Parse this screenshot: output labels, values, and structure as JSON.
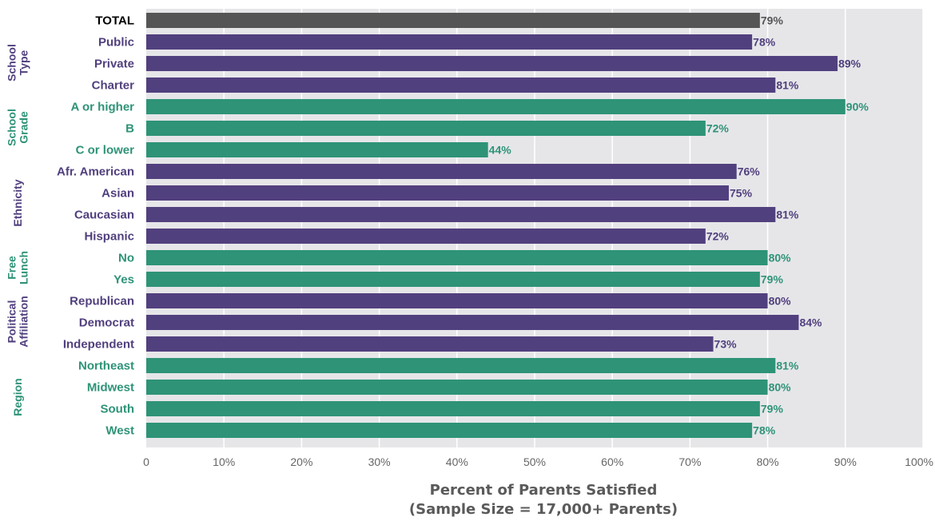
{
  "chart_data": {
    "type": "bar",
    "orientation": "horizontal",
    "xlabel": "Percent of Parents Satisfied",
    "xlabel_sub": "(Sample Size = 17,000+ Parents)",
    "xlim": [
      0,
      100
    ],
    "x_ticks": [
      "0",
      "10%",
      "20%",
      "30%",
      "40%",
      "50%",
      "60%",
      "70%",
      "80%",
      "90%",
      "100%"
    ],
    "grid": true,
    "colors": {
      "total": "#555555",
      "purple": "#51407e",
      "green": "#2e9377",
      "total_text": "#000000",
      "plot_bg": "#e6e6e9"
    },
    "categories": [
      {
        "label": "TOTAL",
        "value": 79,
        "display": "79%",
        "color": "total"
      },
      {
        "label": "Public",
        "value": 78,
        "display": "78%",
        "color": "purple"
      },
      {
        "label": "Private",
        "value": 89,
        "display": "89%",
        "color": "purple"
      },
      {
        "label": "Charter",
        "value": 81,
        "display": "81%",
        "color": "purple"
      },
      {
        "label": "A or higher",
        "value": 90,
        "display": "90%",
        "color": "green"
      },
      {
        "label": "B",
        "value": 72,
        "display": "72%",
        "color": "green"
      },
      {
        "label": "C or lower",
        "value": 44,
        "display": "44%",
        "color": "green"
      },
      {
        "label": "Afr. American",
        "value": 76,
        "display": "76%",
        "color": "purple"
      },
      {
        "label": "Asian",
        "value": 75,
        "display": "75%",
        "color": "purple"
      },
      {
        "label": "Caucasian",
        "value": 81,
        "display": "81%",
        "color": "purple"
      },
      {
        "label": "Hispanic",
        "value": 72,
        "display": "72%",
        "color": "purple"
      },
      {
        "label": "No",
        "value": 80,
        "display": "80%",
        "color": "green"
      },
      {
        "label": "Yes",
        "value": 79,
        "display": "79%",
        "color": "green"
      },
      {
        "label": "Republican",
        "value": 80,
        "display": "80%",
        "color": "purple"
      },
      {
        "label": "Democrat",
        "value": 84,
        "display": "84%",
        "color": "purple"
      },
      {
        "label": "Independent",
        "value": 73,
        "display": "73%",
        "color": "purple"
      },
      {
        "label": "Northeast",
        "value": 81,
        "display": "81%",
        "color": "green"
      },
      {
        "label": "Midwest",
        "value": 80,
        "display": "80%",
        "color": "green"
      },
      {
        "label": "South",
        "value": 79,
        "display": "79%",
        "color": "green"
      },
      {
        "label": "West",
        "value": 78,
        "display": "78%",
        "color": "green"
      }
    ],
    "groups": [
      {
        "lines": [
          "School",
          "Type"
        ],
        "first": 1,
        "last": 3,
        "color": "purple"
      },
      {
        "lines": [
          "School",
          "Grade"
        ],
        "first": 4,
        "last": 6,
        "color": "green"
      },
      {
        "lines": [
          "Ethnicity"
        ],
        "first": 7,
        "last": 10,
        "color": "purple"
      },
      {
        "lines": [
          "Free",
          "Lunch"
        ],
        "first": 11,
        "last": 12,
        "color": "green"
      },
      {
        "lines": [
          "Political",
          "Affiliation"
        ],
        "first": 13,
        "last": 15,
        "color": "purple"
      },
      {
        "lines": [
          "Region"
        ],
        "first": 16,
        "last": 19,
        "color": "green"
      }
    ]
  }
}
